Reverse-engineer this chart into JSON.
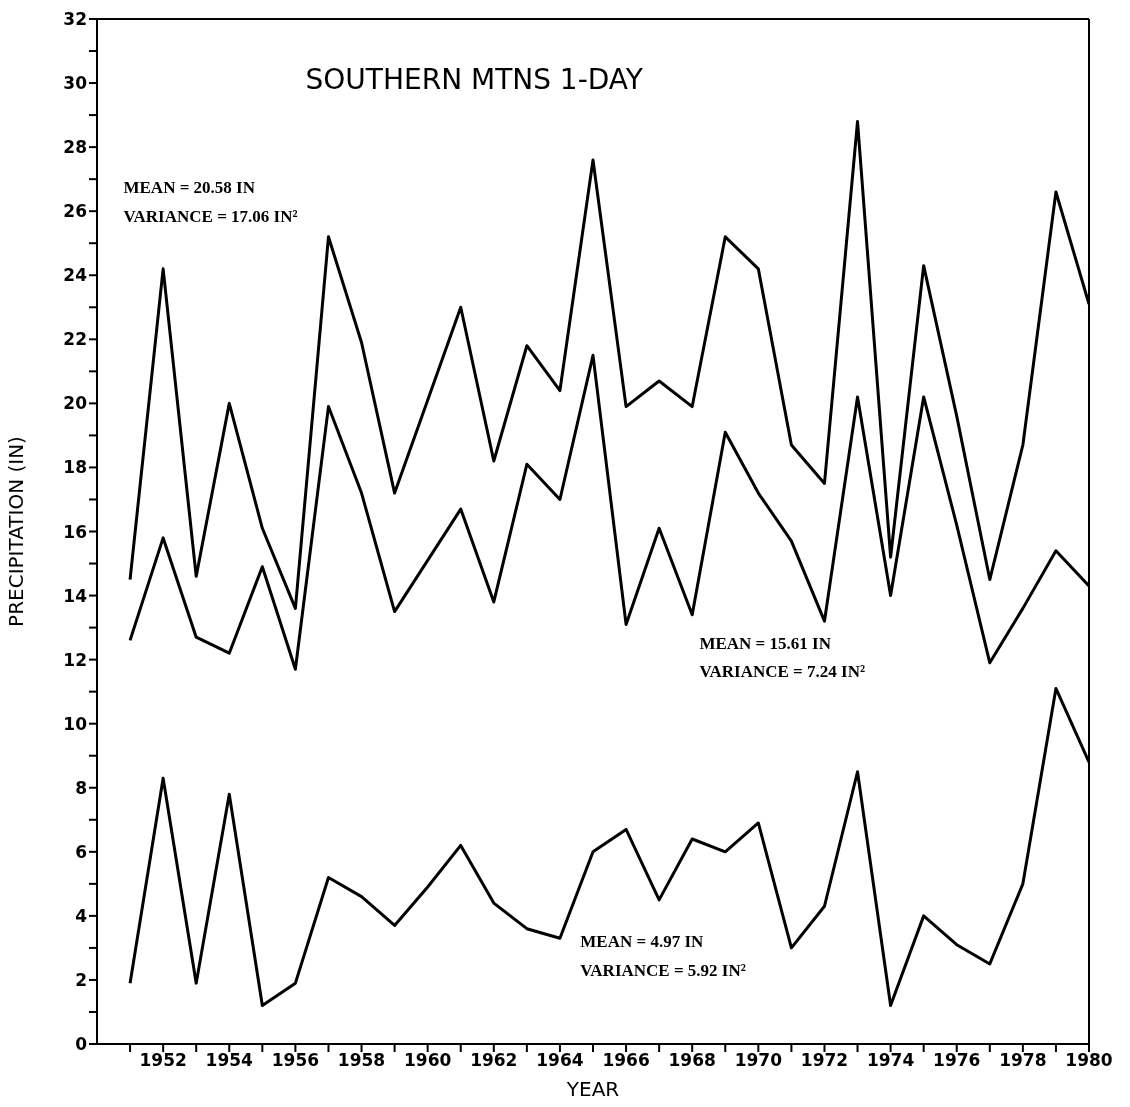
{
  "chart_data": {
    "type": "line",
    "title": "SOUTHERN MTNS 1-DAY",
    "xlabel": "YEAR",
    "ylabel": "PRECIPITATION  (IN)",
    "x": [
      1951,
      1952,
      1953,
      1954,
      1955,
      1956,
      1957,
      1958,
      1959,
      1960,
      1961,
      1962,
      1963,
      1964,
      1965,
      1966,
      1967,
      1968,
      1969,
      1970,
      1971,
      1972,
      1973,
      1974,
      1975,
      1976,
      1977,
      1978,
      1979,
      1980
    ],
    "series": [
      {
        "color": "#000000",
        "values": [
          14.5,
          24.2,
          14.6,
          20.0,
          16.1,
          13.6,
          25.2,
          21.9,
          17.2,
          20.1,
          23.0,
          18.2,
          21.8,
          20.4,
          27.6,
          19.9,
          20.7,
          19.9,
          25.2,
          24.2,
          18.7,
          17.5,
          28.8,
          15.2,
          24.3,
          19.6,
          14.5,
          18.7,
          26.6,
          23.1
        ]
      },
      {
        "color": "#000000",
        "values": [
          12.6,
          15.8,
          12.7,
          12.2,
          14.9,
          11.7,
          19.9,
          17.2,
          13.5,
          15.1,
          16.7,
          13.8,
          18.1,
          17.0,
          21.5,
          13.1,
          16.1,
          13.4,
          19.1,
          17.2,
          15.7,
          13.2,
          20.2,
          14.0,
          20.2,
          16.2,
          11.9,
          13.6,
          15.4,
          14.3
        ]
      },
      {
        "color": "#000000",
        "values": [
          1.9,
          8.3,
          1.9,
          7.8,
          1.2,
          1.9,
          5.2,
          4.6,
          3.7,
          4.9,
          6.2,
          4.4,
          3.6,
          3.3,
          6.0,
          6.7,
          4.5,
          6.4,
          6.0,
          6.9,
          3.0,
          4.3,
          8.5,
          1.2,
          4.0,
          3.1,
          2.5,
          5.0,
          11.1,
          8.8
        ]
      }
    ],
    "xlim": [
      1950,
      1980
    ],
    "xticks": [
      {
        "value": 1951,
        "label": null
      },
      1952,
      {
        "value": 1953,
        "label": null
      },
      1954,
      {
        "value": 1955,
        "label": null
      },
      1956,
      {
        "value": 1957,
        "label": null
      },
      1958,
      {
        "value": 1959,
        "label": null
      },
      1960,
      {
        "value": 1961,
        "label": null
      },
      1962,
      {
        "value": 1963,
        "label": null
      },
      1964,
      {
        "value": 1965,
        "label": null
      },
      1966,
      {
        "value": 1967,
        "label": null
      },
      1968,
      {
        "value": 1969,
        "label": null
      },
      1970,
      {
        "value": 1971,
        "label": null
      },
      1972,
      {
        "value": 1973,
        "label": null
      },
      1974,
      {
        "value": 1975,
        "label": null
      },
      1976,
      {
        "value": 1977,
        "label": null
      },
      1978,
      {
        "value": 1979,
        "label": null
      },
      1980
    ],
    "ylim": [
      0,
      32
    ],
    "yticks": [
      0,
      {
        "value": 1,
        "label": null
      },
      2,
      {
        "value": 3,
        "label": null
      },
      4,
      {
        "value": 5,
        "label": null
      },
      6,
      {
        "value": 7,
        "label": null
      },
      8,
      {
        "value": 9,
        "label": null
      },
      10,
      {
        "value": 11,
        "label": null
      },
      12,
      {
        "value": 13,
        "label": null
      },
      14,
      {
        "value": 15,
        "label": null
      },
      16,
      {
        "value": 17,
        "label": null
      },
      18,
      {
        "value": 19,
        "label": null
      },
      20,
      {
        "value": 21,
        "label": null
      },
      22,
      {
        "value": 23,
        "label": null
      },
      24,
      {
        "value": 25,
        "label": null
      },
      26,
      {
        "value": 27,
        "label": null
      },
      28,
      {
        "value": 29,
        "label": null
      },
      30,
      {
        "value": 31,
        "label": null
      },
      32
    ],
    "annotations": [
      "MEAN = 20.58 IN",
      "VARIANCE = 17.06 IN²",
      "MEAN = 15.61 IN",
      "VARIANCE = 7.24 IN²",
      "MEAN = 4.97 IN",
      "VARIANCE = 5.92 IN²"
    ],
    "grid": false,
    "legend": false,
    "marker": "none",
    "line_style": "solid"
  }
}
